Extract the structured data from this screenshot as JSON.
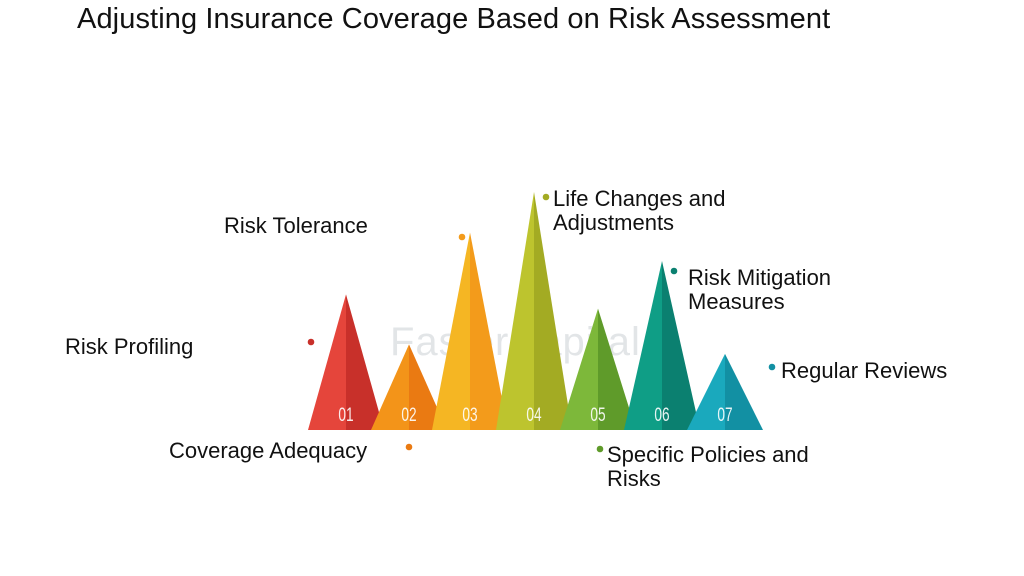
{
  "title": "Adjusting Insurance Coverage Based on Risk Assessment",
  "watermark": "FasterCapital",
  "steps": [
    {
      "number": "01",
      "label_lines": [
        "Risk Profiling"
      ],
      "color": "#e5453b",
      "shade": "#c8302a",
      "height_level": 0.57
    },
    {
      "number": "02",
      "label_lines": [
        "Coverage Adequacy"
      ],
      "color": "#f39419",
      "shade": "#ea7a12",
      "height_level": 0.36
    },
    {
      "number": "03",
      "label_lines": [
        "Risk Tolerance"
      ],
      "color": "#f5b623",
      "shade": "#f39b1b",
      "height_level": 0.83
    },
    {
      "number": "04",
      "label_lines": [
        "Life Changes and",
        "Adjustments"
      ],
      "color": "#bdc42e",
      "shade": "#a3ab23",
      "height_level": 1.0
    },
    {
      "number": "05",
      "label_lines": [
        "Specific Policies and",
        "Risks"
      ],
      "color": "#7db83a",
      "shade": "#5f9b2a",
      "height_level": 0.51
    },
    {
      "number": "06",
      "label_lines": [
        "Risk Mitigation",
        "Measures"
      ],
      "color": "#0f9e86",
      "shade": "#0b8070",
      "height_level": 0.71
    },
    {
      "number": "07",
      "label_lines": [
        "Regular Reviews"
      ],
      "color": "#1aa9bd",
      "shade": "#1290a3",
      "height_level": 0.32
    }
  ]
}
